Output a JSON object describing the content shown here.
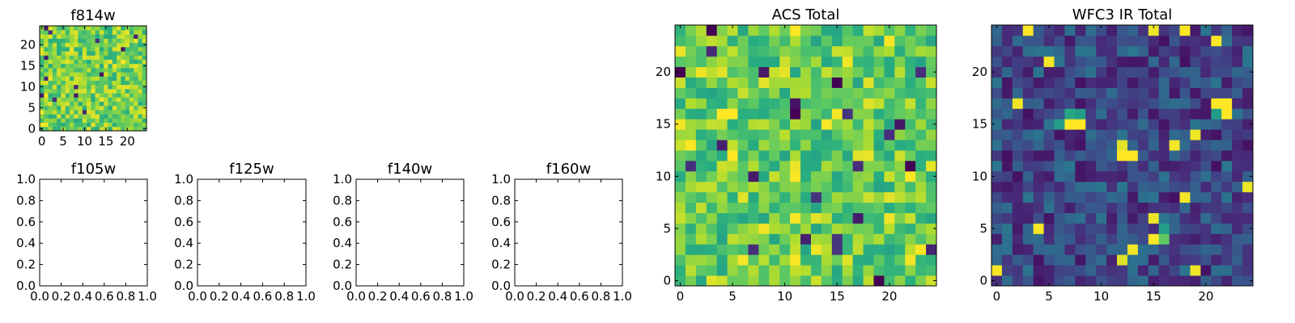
{
  "colormap": {
    "name": "viridis",
    "low": "#440154",
    "mid": "#21918c",
    "high": "#fde725"
  },
  "chart_data": [
    {
      "id": "f814w",
      "type": "heatmap",
      "title": "f814w",
      "grid_size": 25,
      "xlim": [
        -0.5,
        24.5
      ],
      "ylim": [
        -0.5,
        24.5
      ],
      "xticks": [
        0,
        5,
        10,
        15,
        20
      ],
      "yticks": [
        0,
        5,
        10,
        15,
        20
      ],
      "value_range": [
        0,
        1
      ],
      "background_level": 0.78,
      "seed": 11,
      "hotspots": []
    },
    {
      "id": "f105w",
      "type": "empty",
      "title": "f105w",
      "xlim": [
        0.0,
        1.0
      ],
      "ylim": [
        0.0,
        1.0
      ],
      "xticks": [
        "0.0",
        "0.2",
        "0.4",
        "0.6",
        "0.8",
        "1.0"
      ],
      "yticks": [
        "0.0",
        "0.2",
        "0.4",
        "0.6",
        "0.8",
        "1.0"
      ]
    },
    {
      "id": "f125w",
      "type": "empty",
      "title": "f125w",
      "xlim": [
        0.0,
        1.0
      ],
      "ylim": [
        0.0,
        1.0
      ],
      "xticks": [
        "0.0",
        "0.2",
        "0.4",
        "0.6",
        "0.8",
        "1.0"
      ],
      "yticks": [
        "0.0",
        "0.2",
        "0.4",
        "0.6",
        "0.8",
        "1.0"
      ]
    },
    {
      "id": "f140w",
      "type": "empty",
      "title": "f140w",
      "xlim": [
        0.0,
        1.0
      ],
      "ylim": [
        0.0,
        1.0
      ],
      "xticks": [
        "0.0",
        "0.2",
        "0.4",
        "0.6",
        "0.8",
        "1.0"
      ],
      "yticks": [
        "0.0",
        "0.2",
        "0.4",
        "0.6",
        "0.8",
        "1.0"
      ]
    },
    {
      "id": "f160w",
      "type": "empty",
      "title": "f160w",
      "xlim": [
        0.0,
        1.0
      ],
      "ylim": [
        0.0,
        1.0
      ],
      "xticks": [
        "0.0",
        "0.2",
        "0.4",
        "0.6",
        "0.8",
        "1.0"
      ],
      "yticks": [
        "0.0",
        "0.2",
        "0.4",
        "0.6",
        "0.8",
        "1.0"
      ]
    },
    {
      "id": "acs-total",
      "type": "heatmap",
      "title": "ACS Total",
      "grid_size": 25,
      "xlim": [
        -0.5,
        24.5
      ],
      "ylim": [
        -0.5,
        24.5
      ],
      "xticks": [
        0,
        5,
        10,
        15,
        20
      ],
      "yticks": [
        0,
        5,
        10,
        15,
        20
      ],
      "value_range": [
        0,
        1
      ],
      "background_level": 0.75,
      "seed": 7,
      "hotspots": [
        {
          "x": 15,
          "y": 19,
          "value": 0.0
        },
        {
          "x": 11,
          "y": 16,
          "value": 0.0
        },
        {
          "x": 19,
          "y": 0,
          "value": 0.0
        },
        {
          "x": 22,
          "y": 11,
          "value": 0.0
        },
        {
          "x": 3,
          "y": 24,
          "value": 0.0
        },
        {
          "x": 0,
          "y": 20,
          "value": 0.0
        },
        {
          "x": 20,
          "y": 23,
          "value": 1.0
        },
        {
          "x": 4,
          "y": 16,
          "value": 1.0
        },
        {
          "x": 5,
          "y": 16,
          "value": 1.0
        },
        {
          "x": 1,
          "y": 13,
          "value": 1.0
        },
        {
          "x": 23,
          "y": 3,
          "value": 1.0
        },
        {
          "x": 11,
          "y": 6,
          "value": 1.0
        }
      ]
    },
    {
      "id": "wfc3-ir-total",
      "type": "heatmap",
      "title": "WFC3 IR Total",
      "grid_size": 25,
      "xlim": [
        -0.5,
        24.5
      ],
      "ylim": [
        -0.5,
        24.5
      ],
      "xticks": [
        0,
        5,
        10,
        15,
        20
      ],
      "yticks": [
        0,
        5,
        10,
        15,
        20
      ],
      "value_range": [
        0,
        1
      ],
      "background_level": 0.22,
      "seed": 3,
      "hotspots": [
        {
          "x": 21,
          "y": 17,
          "value": 1.0
        },
        {
          "x": 22,
          "y": 17,
          "value": 1.0
        },
        {
          "x": 22,
          "y": 16,
          "value": 1.0
        },
        {
          "x": 21,
          "y": 16,
          "value": 0.55
        },
        {
          "x": 7,
          "y": 15,
          "value": 1.0
        },
        {
          "x": 8,
          "y": 15,
          "value": 1.0
        },
        {
          "x": 7,
          "y": 16,
          "value": 0.6
        },
        {
          "x": 8,
          "y": 16,
          "value": 0.55
        },
        {
          "x": 6,
          "y": 15,
          "value": 0.55
        },
        {
          "x": 12,
          "y": 12,
          "value": 1.0
        },
        {
          "x": 13,
          "y": 12,
          "value": 1.0
        },
        {
          "x": 15,
          "y": 4,
          "value": 1.0
        },
        {
          "x": 16,
          "y": 4,
          "value": 0.75
        },
        {
          "x": 16,
          "y": 5,
          "value": 0.55
        }
      ]
    }
  ]
}
